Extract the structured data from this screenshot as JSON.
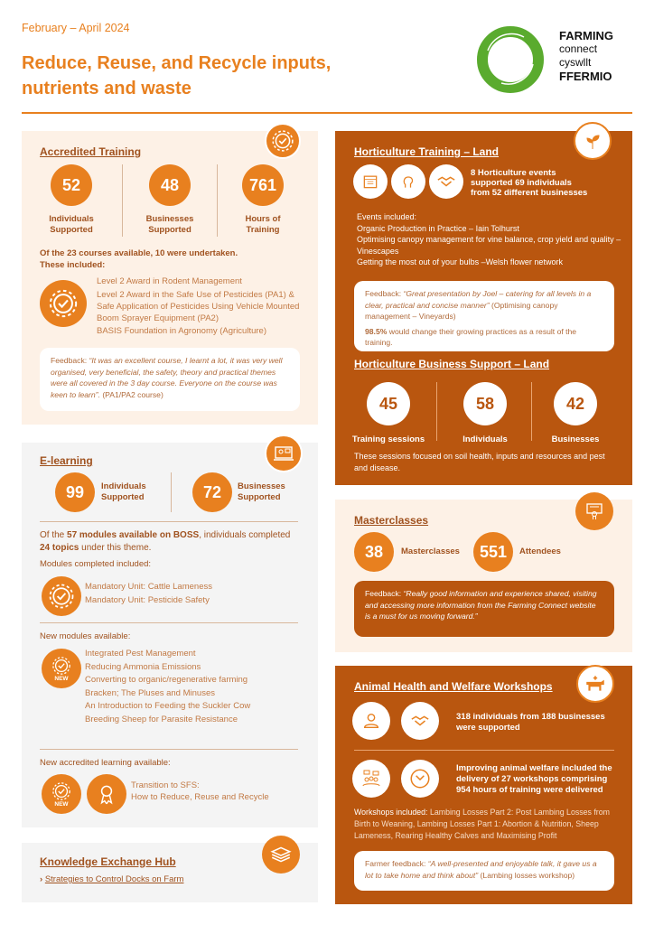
{
  "header": {
    "date": "February – April 2024",
    "title_line1": "Reduce, Reuse, and Recycle inputs,",
    "title_line2": "nutrients and waste",
    "logo": {
      "line1": "FARMING",
      "line2": "connect",
      "line3": "cyswllt",
      "line4": "FFERMIO"
    }
  },
  "colors": {
    "orange": "#e8801f",
    "brown": "#b9560f",
    "light_panel": "#fdf1e6",
    "grey_panel": "#f4f4f4",
    "logo_green": "#5aab2e"
  },
  "accredited": {
    "title": "Accredited Training",
    "icon": "gear-check-icon",
    "stats": [
      {
        "value": "52",
        "label1": "Individuals",
        "label2": "Supported"
      },
      {
        "value": "48",
        "label1": "Businesses",
        "label2": "Supported"
      },
      {
        "value": "761",
        "label1": "Hours of",
        "label2": "Training"
      }
    ],
    "summary1": "Of the 23 courses available, 10 were undertaken.",
    "summary2": "These included:",
    "courses": [
      "Level 2 Award in Rodent Management",
      "Level 2 Award in the Safe Use of Pesticides (PA1) &",
      "Safe Application of Pesticides Using Vehicle Mounted",
      "Boom Sprayer Equipment (PA2)",
      "BASIS Foundation in Agronomy (Agriculture)"
    ],
    "feedback_prefix": "Feedback: ",
    "feedback_quote": "“It was an excellent course, I learnt a lot, it was very well organised, very beneficial, the safety, theory and practical themes were all covered in the 3 day course. Everyone on the course was keen to learn”.",
    "feedback_suffix": " (PA1/PA2 course)"
  },
  "elearning": {
    "title": "E-learning",
    "icon": "online-learning-icon",
    "stats": [
      {
        "value": "99",
        "label1": "Individuals",
        "label2": "Supported"
      },
      {
        "value": "72",
        "label1": "Businesses",
        "label2": "Supported"
      }
    ],
    "summary_a": "Of the ",
    "summary_b": "57 modules available on BOSS",
    "summary_c": ", individuals completed ",
    "summary_d": "24 topics",
    "summary_e": " under this theme.",
    "completed_heading": "Modules completed included:",
    "completed": [
      "Mandatory Unit: Cattle Lameness",
      "Mandatory Unit: Pesticide Safety"
    ],
    "new_heading": "New modules available:",
    "new_badge": "NEW",
    "new_modules": [
      "Integrated Pest Management",
      "Reducing Ammonia Emissions",
      "Converting to organic/regenerative farming",
      "Bracken; The Pluses and Minuses",
      "An Introduction to Feeding the Suckler Cow",
      "Breeding Sheep for Parasite Resistance"
    ],
    "accredited_heading": "New accredited learning available:",
    "accredited_item1": "Transition to SFS:",
    "accredited_item2": "How to Reduce, Reuse and Recycle"
  },
  "keh": {
    "title": "Knowledge Exchange Hub",
    "icon": "layers-icon",
    "link": "Strategies to Control Docks on Farm"
  },
  "horticulture": {
    "title": "Horticulture Training – Land",
    "icon": "leaf-icon",
    "summary": [
      "8 Horticulture events",
      "supported 69 individuals",
      "from 52 different businesses"
    ],
    "events": [
      "Events included:",
      "Organic Production in Practice – Iain Tolhurst",
      "Optimising canopy management for vine balance, crop yield and quality – Vinescapes",
      "Getting the most out of your bulbs –Welsh flower network"
    ],
    "feedback_prefix": "Feedback: ",
    "feedback_quote": "“Great presentation by Joel – catering for all levels in a clear, practical and concise manner”",
    "feedback_suffix": " (Optimising canopy management – Vineyards)",
    "stat_bold": "98.5%",
    "stat_text": " would change their growing practices as a result of the training."
  },
  "hort_business": {
    "title": "Horticulture Business Support – Land",
    "stats": [
      {
        "value": "45",
        "label": "Training sessions"
      },
      {
        "value": "58",
        "label": "Individuals"
      },
      {
        "value": "42",
        "label": "Businesses"
      }
    ],
    "text": "These sessions focused on soil health, inputs and resources and pest and disease."
  },
  "masterclasses": {
    "title": "Masterclasses",
    "icon": "certificate-icon",
    "stats": [
      {
        "value": "38",
        "label": "Masterclasses"
      },
      {
        "value": "551",
        "label": "Attendees"
      }
    ],
    "feedback_prefix": "Feedback: ",
    "feedback_quote": "“Really good information and experience shared, visiting and accessing more information from the Farming Connect website is a must for us moving forward.”"
  },
  "animal": {
    "title": "Animal Health and Welfare Workshops",
    "icon": "cow-health-icon",
    "summary1": "318 individuals from 188 businesses were supported",
    "summary2": "Improving animal welfare included the delivery of 27 workshops comprising 954 hours of training were delivered",
    "workshops_label": "Workshops included: ",
    "workshops": "Lambing Losses Part 2: Post Lambing Losses from Birth to Weaning, Lambing Losses Part 1: Abortion & Nutrition, Sheep Lameness, Rearing Healthy Calves and Maximising Profit",
    "feedback_prefix": "Farmer feedback: ",
    "feedback_quote": "“A well-presented and enjoyable talk, it gave us a lot to take home and think about”",
    "feedback_suffix": " (Lambing losses workshop)"
  }
}
